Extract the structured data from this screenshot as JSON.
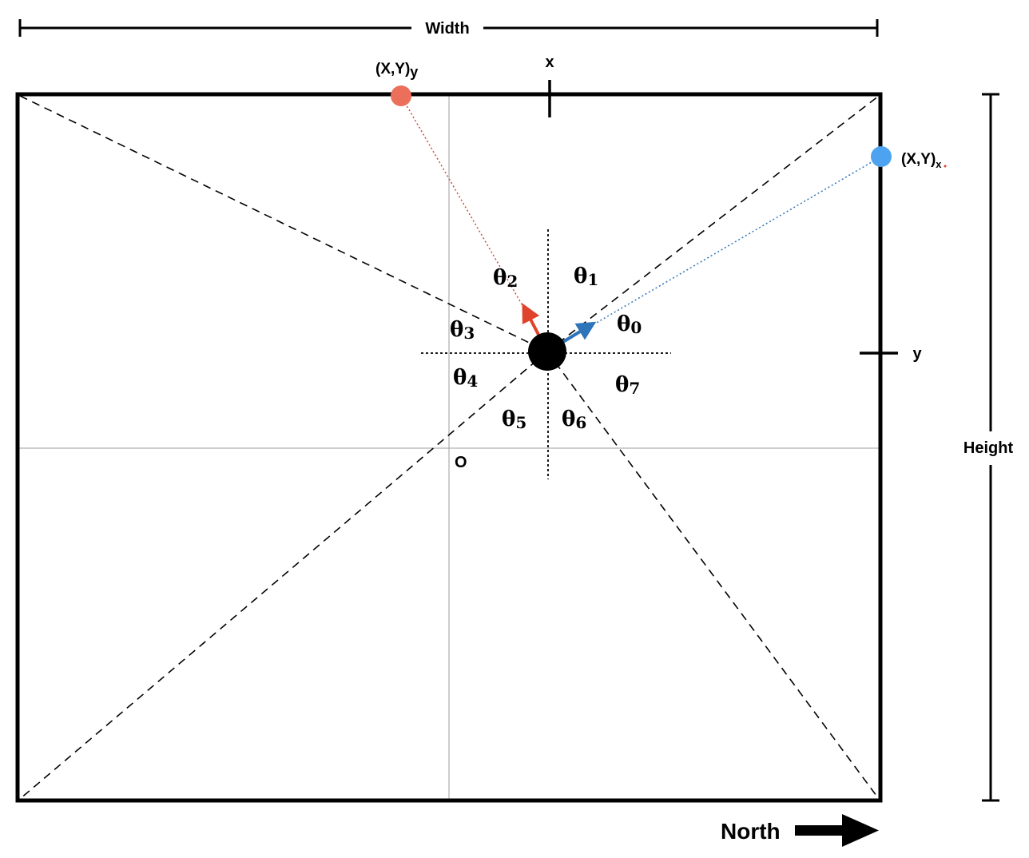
{
  "labels": {
    "width": "Width",
    "height": "Height",
    "x_tick": "x",
    "y_tick": "y",
    "origin": "O",
    "north": "North",
    "point_y": {
      "base": "(X,Y)",
      "sub": "y"
    },
    "point_x": {
      "base": "(X,Y)",
      "sub": "x"
    }
  },
  "sectors": [
    {
      "symbol": "θ",
      "sub": "0"
    },
    {
      "symbol": "θ",
      "sub": "1"
    },
    {
      "symbol": "θ",
      "sub": "2"
    },
    {
      "symbol": "θ",
      "sub": "3"
    },
    {
      "symbol": "θ",
      "sub": "4"
    },
    {
      "symbol": "θ",
      "sub": "5"
    },
    {
      "symbol": "θ",
      "sub": "6"
    },
    {
      "symbol": "θ",
      "sub": "7"
    }
  ],
  "colors": {
    "point_y": "#ec6f5b",
    "point_x": "#4da3f0",
    "arrow_y": "#e0432b",
    "arrow_x": "#2e74b8",
    "frame": "#000000",
    "center_axis": "#9e9e9e"
  }
}
